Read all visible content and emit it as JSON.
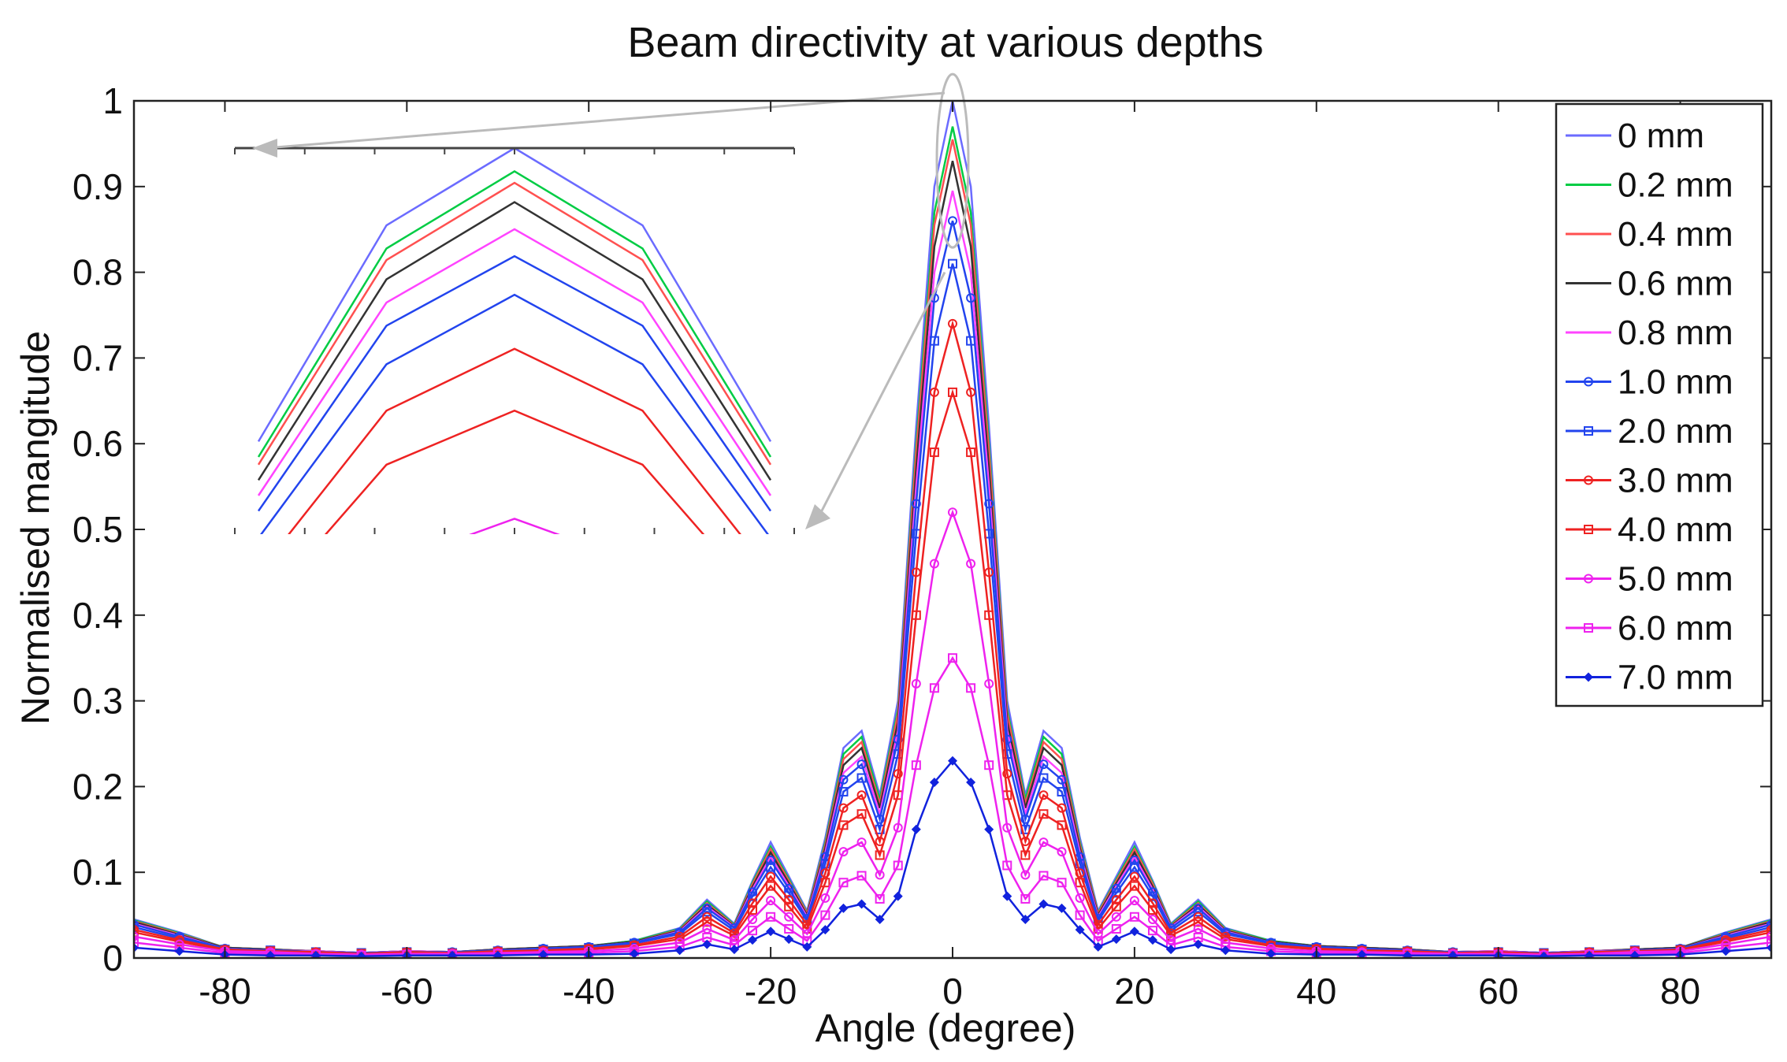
{
  "chart_data": {
    "type": "line",
    "title": "Beam directivity at various depths",
    "xlabel": "Angle (degree)",
    "ylabel": "Normalised mangitude",
    "xlim": [
      -90,
      90
    ],
    "ylim": [
      0,
      1
    ],
    "xticks": [
      -80,
      -60,
      -40,
      -20,
      0,
      20,
      40,
      60,
      80
    ],
    "xtick_labels": [
      "-80",
      "-60",
      "-40",
      "-20",
      "0",
      "20",
      "40",
      "60",
      "80"
    ],
    "yticks": [
      0,
      0.1,
      0.2,
      0.3,
      0.4,
      0.5,
      0.6,
      0.7,
      0.8,
      0.9,
      1
    ],
    "ytick_labels": [
      "0",
      "0.1",
      "0.2",
      "0.3",
      "0.4",
      "0.5",
      "0.6",
      "0.7",
      "0.8",
      "0.9",
      "1"
    ],
    "grid": false,
    "legend_position": "top-right",
    "x": [
      -90,
      -85,
      -80,
      -75,
      -70,
      -65,
      -60,
      -55,
      -50,
      -45,
      -40,
      -35,
      -30,
      -27,
      -24,
      -22,
      -20,
      -18,
      -16,
      -14,
      -12,
      -10,
      -8,
      -6,
      -4,
      -2,
      0,
      2,
      4,
      6,
      8,
      10,
      12,
      14,
      16,
      18,
      20,
      22,
      24,
      27,
      30,
      35,
      40,
      45,
      50,
      55,
      60,
      65,
      70,
      75,
      80,
      85,
      90
    ],
    "series": [
      {
        "name": "0 mm",
        "color": "#6b6bff",
        "marker": "none",
        "values": [
          0.045,
          0.03,
          0.012,
          0.01,
          0.008,
          0.006,
          0.008,
          0.007,
          0.01,
          0.012,
          0.014,
          0.02,
          0.035,
          0.068,
          0.04,
          0.09,
          0.135,
          0.095,
          0.055,
          0.14,
          0.245,
          0.265,
          0.19,
          0.3,
          0.62,
          0.9,
          1.0,
          0.9,
          0.62,
          0.3,
          0.19,
          0.265,
          0.245,
          0.14,
          0.055,
          0.095,
          0.135,
          0.09,
          0.04,
          0.068,
          0.035,
          0.02,
          0.014,
          0.012,
          0.01,
          0.007,
          0.008,
          0.006,
          0.008,
          0.01,
          0.012,
          0.03,
          0.045
        ]
      },
      {
        "name": "0.2 mm",
        "color": "#00cc44",
        "marker": "none",
        "values": [
          0.044,
          0.029,
          0.012,
          0.01,
          0.008,
          0.006,
          0.008,
          0.007,
          0.01,
          0.012,
          0.014,
          0.02,
          0.034,
          0.066,
          0.039,
          0.088,
          0.13,
          0.092,
          0.053,
          0.135,
          0.238,
          0.258,
          0.185,
          0.29,
          0.6,
          0.87,
          0.97,
          0.87,
          0.6,
          0.29,
          0.185,
          0.258,
          0.238,
          0.135,
          0.053,
          0.092,
          0.13,
          0.088,
          0.039,
          0.066,
          0.034,
          0.02,
          0.014,
          0.012,
          0.01,
          0.007,
          0.008,
          0.006,
          0.008,
          0.01,
          0.012,
          0.029,
          0.044
        ]
      },
      {
        "name": "0.4 mm",
        "color": "#ff5050",
        "marker": "none",
        "values": [
          0.043,
          0.028,
          0.012,
          0.01,
          0.008,
          0.006,
          0.008,
          0.007,
          0.01,
          0.012,
          0.014,
          0.019,
          0.033,
          0.064,
          0.038,
          0.086,
          0.127,
          0.09,
          0.052,
          0.132,
          0.232,
          0.252,
          0.18,
          0.285,
          0.59,
          0.855,
          0.955,
          0.855,
          0.59,
          0.285,
          0.18,
          0.252,
          0.232,
          0.132,
          0.052,
          0.09,
          0.127,
          0.086,
          0.038,
          0.064,
          0.033,
          0.019,
          0.014,
          0.012,
          0.01,
          0.007,
          0.008,
          0.006,
          0.008,
          0.01,
          0.012,
          0.028,
          0.043
        ]
      },
      {
        "name": "0.6 mm",
        "color": "#333333",
        "marker": "none",
        "values": [
          0.042,
          0.027,
          0.012,
          0.01,
          0.008,
          0.006,
          0.008,
          0.007,
          0.01,
          0.012,
          0.014,
          0.019,
          0.032,
          0.062,
          0.037,
          0.083,
          0.123,
          0.087,
          0.05,
          0.128,
          0.225,
          0.245,
          0.175,
          0.275,
          0.57,
          0.83,
          0.93,
          0.83,
          0.57,
          0.275,
          0.175,
          0.245,
          0.225,
          0.128,
          0.05,
          0.087,
          0.123,
          0.083,
          0.037,
          0.062,
          0.032,
          0.019,
          0.014,
          0.012,
          0.01,
          0.007,
          0.008,
          0.006,
          0.008,
          0.01,
          0.012,
          0.027,
          0.042
        ]
      },
      {
        "name": "0.8 mm",
        "color": "#ff44ff",
        "marker": "none",
        "values": [
          0.04,
          0.026,
          0.011,
          0.009,
          0.008,
          0.006,
          0.008,
          0.007,
          0.009,
          0.011,
          0.013,
          0.018,
          0.031,
          0.06,
          0.036,
          0.08,
          0.118,
          0.084,
          0.048,
          0.123,
          0.216,
          0.235,
          0.168,
          0.265,
          0.55,
          0.8,
          0.895,
          0.8,
          0.55,
          0.265,
          0.168,
          0.235,
          0.216,
          0.123,
          0.048,
          0.084,
          0.118,
          0.08,
          0.036,
          0.06,
          0.031,
          0.018,
          0.013,
          0.011,
          0.009,
          0.007,
          0.008,
          0.006,
          0.008,
          0.009,
          0.011,
          0.026,
          0.04
        ]
      },
      {
        "name": "1.0 mm",
        "color": "#2244ee",
        "marker": "circle",
        "values": [
          0.039,
          0.025,
          0.011,
          0.009,
          0.007,
          0.006,
          0.007,
          0.007,
          0.009,
          0.011,
          0.013,
          0.018,
          0.03,
          0.058,
          0.035,
          0.077,
          0.114,
          0.081,
          0.046,
          0.118,
          0.208,
          0.226,
          0.162,
          0.255,
          0.53,
          0.77,
          0.86,
          0.77,
          0.53,
          0.255,
          0.162,
          0.226,
          0.208,
          0.118,
          0.046,
          0.081,
          0.114,
          0.077,
          0.035,
          0.058,
          0.03,
          0.018,
          0.013,
          0.011,
          0.009,
          0.007,
          0.007,
          0.006,
          0.007,
          0.009,
          0.011,
          0.025,
          0.039
        ]
      },
      {
        "name": "2.0 mm",
        "color": "#2244ee",
        "marker": "square",
        "values": [
          0.036,
          0.023,
          0.01,
          0.009,
          0.007,
          0.006,
          0.007,
          0.006,
          0.008,
          0.01,
          0.012,
          0.017,
          0.028,
          0.054,
          0.032,
          0.072,
          0.106,
          0.076,
          0.043,
          0.11,
          0.194,
          0.21,
          0.15,
          0.238,
          0.495,
          0.72,
          0.81,
          0.72,
          0.495,
          0.238,
          0.15,
          0.21,
          0.194,
          0.11,
          0.043,
          0.076,
          0.106,
          0.072,
          0.032,
          0.054,
          0.028,
          0.017,
          0.012,
          0.01,
          0.008,
          0.006,
          0.007,
          0.006,
          0.007,
          0.009,
          0.01,
          0.023,
          0.036
        ]
      },
      {
        "name": "3.0 mm",
        "color": "#ee2222",
        "marker": "circle",
        "values": [
          0.033,
          0.021,
          0.01,
          0.008,
          0.007,
          0.005,
          0.007,
          0.006,
          0.008,
          0.009,
          0.011,
          0.015,
          0.025,
          0.048,
          0.029,
          0.064,
          0.095,
          0.068,
          0.039,
          0.099,
          0.175,
          0.19,
          0.136,
          0.215,
          0.45,
          0.66,
          0.74,
          0.66,
          0.45,
          0.215,
          0.136,
          0.19,
          0.175,
          0.099,
          0.039,
          0.068,
          0.095,
          0.064,
          0.029,
          0.048,
          0.025,
          0.015,
          0.011,
          0.009,
          0.008,
          0.006,
          0.007,
          0.005,
          0.007,
          0.008,
          0.01,
          0.021,
          0.033
        ]
      },
      {
        "name": "4.0 mm",
        "color": "#ee2222",
        "marker": "square",
        "values": [
          0.03,
          0.019,
          0.009,
          0.008,
          0.006,
          0.005,
          0.006,
          0.005,
          0.007,
          0.008,
          0.01,
          0.014,
          0.022,
          0.042,
          0.026,
          0.056,
          0.084,
          0.06,
          0.034,
          0.088,
          0.155,
          0.168,
          0.12,
          0.19,
          0.4,
          0.59,
          0.66,
          0.59,
          0.4,
          0.19,
          0.12,
          0.168,
          0.155,
          0.088,
          0.034,
          0.06,
          0.084,
          0.056,
          0.026,
          0.042,
          0.022,
          0.014,
          0.01,
          0.008,
          0.007,
          0.005,
          0.006,
          0.005,
          0.006,
          0.008,
          0.009,
          0.019,
          0.03
        ]
      },
      {
        "name": "5.0 mm",
        "color": "#ee22ee",
        "marker": "circle",
        "values": [
          0.025,
          0.016,
          0.008,
          0.007,
          0.005,
          0.004,
          0.005,
          0.005,
          0.006,
          0.007,
          0.008,
          0.011,
          0.018,
          0.034,
          0.021,
          0.045,
          0.067,
          0.048,
          0.028,
          0.07,
          0.124,
          0.135,
          0.097,
          0.152,
          0.32,
          0.46,
          0.52,
          0.46,
          0.32,
          0.152,
          0.097,
          0.135,
          0.124,
          0.07,
          0.028,
          0.048,
          0.067,
          0.045,
          0.021,
          0.034,
          0.018,
          0.011,
          0.008,
          0.007,
          0.006,
          0.005,
          0.005,
          0.004,
          0.005,
          0.007,
          0.008,
          0.016,
          0.025
        ]
      },
      {
        "name": "6.0 mm",
        "color": "#ee22ee",
        "marker": "square",
        "values": [
          0.018,
          0.012,
          0.006,
          0.005,
          0.004,
          0.003,
          0.004,
          0.004,
          0.005,
          0.005,
          0.006,
          0.008,
          0.013,
          0.024,
          0.015,
          0.032,
          0.048,
          0.034,
          0.02,
          0.05,
          0.088,
          0.096,
          0.069,
          0.108,
          0.225,
          0.315,
          0.35,
          0.315,
          0.225,
          0.108,
          0.069,
          0.096,
          0.088,
          0.05,
          0.02,
          0.034,
          0.048,
          0.032,
          0.015,
          0.024,
          0.013,
          0.008,
          0.006,
          0.005,
          0.005,
          0.004,
          0.004,
          0.003,
          0.004,
          0.005,
          0.006,
          0.012,
          0.018
        ]
      },
      {
        "name": "7.0 mm",
        "color": "#1122dd",
        "marker": "diamond",
        "values": [
          0.012,
          0.008,
          0.004,
          0.003,
          0.003,
          0.002,
          0.003,
          0.003,
          0.003,
          0.004,
          0.004,
          0.005,
          0.009,
          0.016,
          0.01,
          0.021,
          0.031,
          0.022,
          0.013,
          0.033,
          0.058,
          0.063,
          0.045,
          0.072,
          0.15,
          0.205,
          0.23,
          0.205,
          0.15,
          0.072,
          0.045,
          0.063,
          0.058,
          0.033,
          0.013,
          0.022,
          0.031,
          0.021,
          0.01,
          0.016,
          0.009,
          0.005,
          0.004,
          0.004,
          0.003,
          0.003,
          0.003,
          0.002,
          0.003,
          0.003,
          0.004,
          0.008,
          0.012
        ]
      }
    ],
    "inset": {
      "x": [
        -4,
        -3,
        -2,
        -1,
        0,
        1,
        2,
        3,
        4
      ],
      "ylim": [
        0.5,
        1.0
      ]
    }
  }
}
